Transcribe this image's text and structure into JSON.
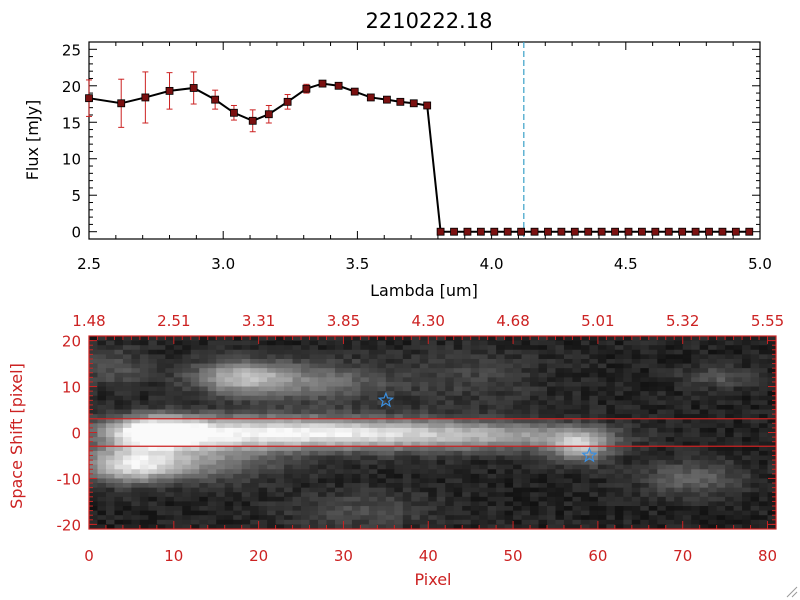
{
  "chart_data": [
    {
      "type": "line",
      "title": "2210222.18",
      "xlabel": "Lambda [um]",
      "ylabel": "Flux [mJy]",
      "xlim": [
        2.5,
        5.0
      ],
      "ylim": [
        -1,
        26
      ],
      "x_ticks": [
        "2.5",
        "3.0",
        "3.5",
        "4.0",
        "4.5",
        "5.0"
      ],
      "y_ticks": [
        "0",
        "5",
        "10",
        "15",
        "20",
        "25"
      ],
      "vline_x": 4.12,
      "line_color": "#000000",
      "marker_color": "#7a1010",
      "error_color": "#cc2222",
      "vline_color": "#3aa0c8",
      "grid": false,
      "series": [
        {
          "x": [
            2.5,
            2.62,
            2.71,
            2.8,
            2.89,
            2.97,
            3.04,
            3.11,
            3.17,
            3.24,
            3.31,
            3.37,
            3.43,
            3.49,
            3.55,
            3.61,
            3.66,
            3.71,
            3.76,
            3.81,
            3.86,
            3.91,
            3.96,
            4.01,
            4.06,
            4.11,
            4.16,
            4.21,
            4.26,
            4.31,
            4.36,
            4.41,
            4.46,
            4.51,
            4.56,
            4.61,
            4.66,
            4.71,
            4.76,
            4.81,
            4.86,
            4.91,
            4.96
          ],
          "y": [
            18.3,
            17.6,
            18.4,
            19.3,
            19.7,
            18.1,
            16.3,
            15.2,
            16.1,
            17.8,
            19.6,
            20.3,
            20.0,
            19.2,
            18.4,
            18.1,
            17.8,
            17.6,
            17.3,
            0,
            0,
            0,
            0,
            0,
            0,
            0,
            0,
            0,
            0,
            0,
            0,
            0,
            0,
            0,
            0,
            0,
            0,
            0,
            0,
            0,
            0,
            0,
            0
          ],
          "yerr": [
            2.5,
            3.3,
            3.5,
            2.5,
            2.2,
            1.3,
            1.0,
            1.5,
            1.2,
            1.0,
            0.6,
            0.4,
            0.4,
            0.4,
            0.3,
            0.3,
            0.3,
            0.3,
            0.3,
            0,
            0,
            0,
            0,
            0,
            0,
            0,
            0,
            0,
            0,
            0,
            0,
            0,
            0,
            0,
            0,
            0,
            0,
            0,
            0,
            0,
            0,
            0,
            0
          ]
        }
      ]
    },
    {
      "type": "heatmap",
      "xlabel": "Pixel",
      "ylabel": "Space Shift [pixel]",
      "xlim": [
        0,
        81
      ],
      "ylim": [
        -21,
        21
      ],
      "x_ticks": [
        "0",
        "10",
        "20",
        "30",
        "40",
        "50",
        "60",
        "70",
        "80"
      ],
      "y_ticks": [
        "-20",
        "-10",
        "0",
        "10",
        "20"
      ],
      "top_axis_ticks": [
        "1.48",
        "2.51",
        "3.31",
        "3.85",
        "4.30",
        "4.68",
        "5.01",
        "5.32",
        "5.55"
      ],
      "axis_color": "#cc2222",
      "hlines_y": [
        3,
        -3
      ],
      "hline_color": "#cc2222",
      "colormap": "gray",
      "markers": [
        {
          "x": 35,
          "y": 7,
          "symbol": "star",
          "color": "#3a8fe0"
        },
        {
          "x": 59,
          "y": -5,
          "symbol": "star",
          "color": "#3a8fe0"
        }
      ],
      "blobs": [
        {
          "x": 8,
          "y": 0,
          "intensity": 0.95,
          "sx": 4,
          "sy": 2.4
        },
        {
          "x": 20,
          "y": 0,
          "intensity": 0.75,
          "sx": 10,
          "sy": 2.4
        },
        {
          "x": 38,
          "y": -0.5,
          "intensity": 0.55,
          "sx": 10,
          "sy": 2.4
        },
        {
          "x": 52,
          "y": -1,
          "intensity": 0.25,
          "sx": 7,
          "sy": 2
        },
        {
          "x": 5,
          "y": -7,
          "intensity": 0.75,
          "sx": 4,
          "sy": 2.6
        },
        {
          "x": 14,
          "y": -6,
          "intensity": 0.35,
          "sx": 6,
          "sy": 3
        },
        {
          "x": 18,
          "y": 12,
          "intensity": 0.55,
          "sx": 4,
          "sy": 2.5
        },
        {
          "x": 27,
          "y": 11,
          "intensity": 0.3,
          "sx": 6,
          "sy": 3
        },
        {
          "x": 58,
          "y": -3,
          "intensity": 0.55,
          "sx": 2.5,
          "sy": 2.5
        },
        {
          "x": 71,
          "y": -10,
          "intensity": 0.25,
          "sx": 4,
          "sy": 2.5
        },
        {
          "x": 74,
          "y": 12,
          "intensity": 0.2,
          "sx": 3,
          "sy": 1.5
        },
        {
          "x": 3,
          "y": 14,
          "intensity": 0.18,
          "sx": 3,
          "sy": 3
        },
        {
          "x": 32,
          "y": -17,
          "intensity": 0.15,
          "sx": 6,
          "sy": 3
        },
        {
          "x": 45,
          "y": 12,
          "intensity": 0.12,
          "sx": 6,
          "sy": 4
        }
      ]
    }
  ]
}
